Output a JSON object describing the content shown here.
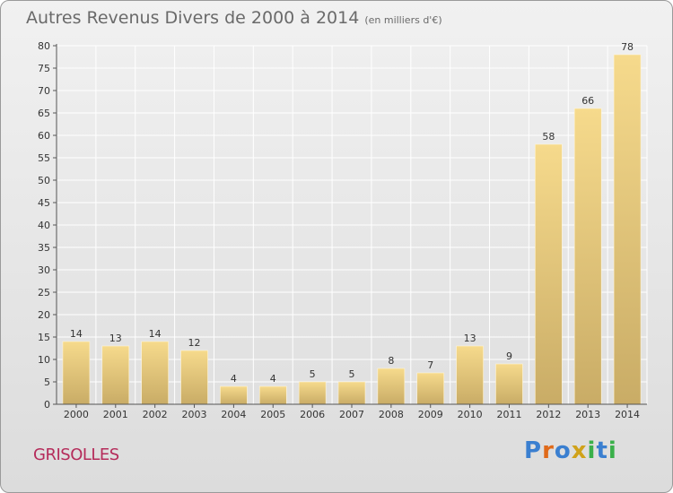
{
  "chart_data": {
    "type": "bar",
    "title": "Autres Revenus Divers de 2000 à 2014",
    "subtitle": "(en milliers d'€)",
    "categories": [
      "2000",
      "2001",
      "2002",
      "2003",
      "2004",
      "2005",
      "2006",
      "2007",
      "2008",
      "2009",
      "2010",
      "2011",
      "2012",
      "2013",
      "2014"
    ],
    "values": [
      14,
      13,
      14,
      12,
      4,
      4,
      5,
      5,
      8,
      7,
      13,
      9,
      58,
      66,
      78
    ],
    "ylim": [
      0,
      80
    ],
    "yticks": [
      0,
      5,
      10,
      15,
      20,
      25,
      30,
      35,
      40,
      45,
      50,
      55,
      60,
      65,
      70,
      75,
      80
    ],
    "grid": true,
    "bar_color": "#e8c878"
  },
  "footer": {
    "commune": "GRISOLLES",
    "logo_text": "Proxiti",
    "logo_colors": [
      "#3a7fd0",
      "#e06a1a",
      "#3a7fd0",
      "#d0a21a",
      "#3ab04a",
      "#3a7fd0",
      "#3ab04a"
    ]
  }
}
